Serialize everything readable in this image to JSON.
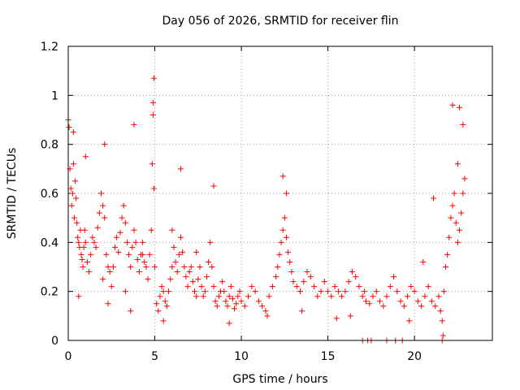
{
  "chart_data": {
    "type": "scatter",
    "title": "Day 056 of 2026, SRMTID for receiver flin",
    "xlabel": "GPS time / hours",
    "ylabel": "SRMTID / TECUs",
    "xlim": [
      0,
      24.5
    ],
    "ylim": [
      0,
      1.2
    ],
    "xticks": [
      0,
      5,
      10,
      15,
      20
    ],
    "xtick_labels": [
      "0",
      "5",
      "10",
      "15",
      "20"
    ],
    "yticks": [
      0,
      0.2,
      0.4,
      0.6,
      0.8,
      1,
      1.2
    ],
    "ytick_labels": [
      "0",
      "0.2",
      "0.4",
      "0.6",
      "0.8",
      "1",
      "1.2"
    ],
    "grid": true,
    "marker": "+",
    "series_color": "#ff0000",
    "series": [
      {
        "name": "SRMTID",
        "x": [
          0.0,
          0.1,
          0.15,
          0.2,
          0.25,
          0.3,
          0.35,
          0.4,
          0.45,
          0.5,
          0.55,
          0.6,
          0.65,
          0.7,
          0.75,
          0.8,
          0.85,
          0.9,
          0.95,
          1.0,
          1.1,
          1.2,
          1.3,
          1.4,
          1.5,
          1.6,
          1.7,
          1.8,
          1.9,
          2.0,
          2.1,
          2.2,
          2.3,
          2.4,
          2.5,
          2.6,
          2.7,
          2.8,
          2.9,
          3.0,
          3.1,
          3.2,
          3.3,
          3.4,
          3.5,
          3.6,
          3.7,
          3.8,
          3.9,
          4.0,
          4.1,
          4.2,
          4.3,
          4.4,
          4.5,
          4.6,
          4.7,
          4.8,
          4.85,
          4.9,
          4.95,
          5.0,
          5.1,
          5.2,
          5.3,
          5.4,
          5.5,
          5.6,
          5.7,
          5.8,
          5.9,
          6.0,
          6.1,
          6.2,
          6.3,
          6.4,
          6.5,
          6.6,
          6.7,
          6.8,
          6.9,
          7.0,
          7.1,
          7.2,
          7.3,
          7.4,
          7.5,
          7.6,
          7.7,
          7.8,
          7.9,
          8.0,
          8.1,
          8.2,
          8.3,
          8.4,
          8.5,
          8.6,
          8.7,
          8.8,
          8.9,
          9.0,
          9.1,
          9.2,
          9.3,
          9.4,
          9.5,
          9.6,
          9.7,
          9.8,
          9.9,
          10.0,
          10.2,
          10.4,
          10.6,
          10.8,
          11.0,
          11.2,
          11.4,
          11.6,
          11.8,
          12.0,
          12.1,
          12.2,
          12.3,
          12.4,
          12.5,
          12.6,
          12.7,
          12.8,
          12.9,
          13.0,
          13.2,
          13.4,
          13.6,
          13.8,
          14.0,
          14.2,
          14.4,
          14.6,
          14.8,
          15.0,
          15.2,
          15.4,
          15.6,
          15.8,
          16.0,
          16.2,
          16.4,
          16.6,
          16.8,
          17.0,
          17.1,
          17.2,
          17.4,
          17.6,
          17.8,
          18.0,
          18.2,
          18.4,
          18.6,
          18.8,
          19.0,
          19.2,
          19.4,
          19.6,
          19.8,
          20.0,
          20.2,
          20.4,
          20.6,
          20.8,
          21.0,
          21.2,
          21.4,
          21.5,
          21.6,
          21.7,
          21.8,
          21.9,
          22.0,
          22.1,
          22.2,
          22.3,
          22.4,
          22.5,
          22.6,
          22.7,
          22.8,
          22.9,
          0.05,
          0.3,
          0.6,
          1.0,
          2.1,
          3.8,
          4.9,
          4.95,
          6.5,
          8.4,
          12.4,
          12.6,
          17.0,
          17.3,
          17.5,
          18.4,
          18.9,
          19.3,
          21.6,
          21.65,
          22.2,
          22.6,
          22.8,
          2.0,
          2.3,
          3.3,
          3.6,
          4.3,
          5.5,
          6.0,
          7.4,
          9.3,
          11.5,
          13.5,
          15.5,
          16.3,
          19.7,
          20.5,
          21.1,
          22.5
        ],
        "y": [
          0.9,
          0.7,
          0.62,
          0.55,
          0.6,
          0.72,
          0.5,
          0.65,
          0.58,
          0.48,
          0.42,
          0.4,
          0.38,
          0.45,
          0.35,
          0.33,
          0.3,
          0.38,
          0.45,
          0.4,
          0.32,
          0.28,
          0.35,
          0.42,
          0.4,
          0.38,
          0.46,
          0.52,
          0.6,
          0.55,
          0.5,
          0.35,
          0.3,
          0.28,
          0.22,
          0.3,
          0.38,
          0.42,
          0.36,
          0.44,
          0.5,
          0.55,
          0.48,
          0.4,
          0.35,
          0.3,
          0.38,
          0.45,
          0.4,
          0.33,
          0.28,
          0.35,
          0.4,
          0.32,
          0.3,
          0.25,
          0.35,
          0.45,
          0.72,
          0.92,
          1.07,
          0.3,
          0.15,
          0.12,
          0.18,
          0.22,
          0.2,
          0.16,
          0.14,
          0.2,
          0.25,
          0.3,
          0.38,
          0.32,
          0.28,
          0.35,
          0.42,
          0.36,
          0.3,
          0.26,
          0.22,
          0.28,
          0.3,
          0.24,
          0.2,
          0.18,
          0.25,
          0.3,
          0.22,
          0.18,
          0.2,
          0.26,
          0.32,
          0.4,
          0.3,
          0.22,
          0.16,
          0.14,
          0.18,
          0.2,
          0.24,
          0.2,
          0.16,
          0.14,
          0.18,
          0.22,
          0.17,
          0.13,
          0.15,
          0.18,
          0.2,
          0.16,
          0.14,
          0.18,
          0.22,
          0.2,
          0.16,
          0.14,
          0.12,
          0.18,
          0.22,
          0.26,
          0.3,
          0.35,
          0.4,
          0.45,
          0.5,
          0.42,
          0.36,
          0.32,
          0.28,
          0.24,
          0.22,
          0.2,
          0.24,
          0.28,
          0.26,
          0.22,
          0.18,
          0.2,
          0.24,
          0.2,
          0.18,
          0.22,
          0.2,
          0.18,
          0.2,
          0.24,
          0.28,
          0.26,
          0.22,
          0.18,
          0.2,
          0.16,
          0.15,
          0.18,
          0.2,
          0.16,
          0.14,
          0.18,
          0.22,
          0.26,
          0.2,
          0.16,
          0.14,
          0.18,
          0.22,
          0.2,
          0.16,
          0.14,
          0.18,
          0.22,
          0.16,
          0.14,
          0.18,
          0.12,
          0.08,
          0.2,
          0.3,
          0.35,
          0.42,
          0.5,
          0.55,
          0.6,
          0.48,
          0.4,
          0.45,
          0.52,
          0.6,
          0.66,
          0.87,
          0.85,
          0.18,
          0.75,
          0.8,
          0.88,
          0.97,
          0.62,
          0.7,
          0.63,
          0.67,
          0.6,
          0.0,
          0.0,
          0.0,
          0.0,
          0.0,
          0.0,
          0.0,
          0.02,
          0.96,
          0.95,
          0.88,
          0.25,
          0.15,
          0.2,
          0.12,
          0.35,
          0.08,
          0.45,
          0.36,
          0.07,
          0.1,
          0.12,
          0.09,
          0.1,
          0.08,
          0.32,
          0.58,
          0.72
        ]
      }
    ]
  }
}
